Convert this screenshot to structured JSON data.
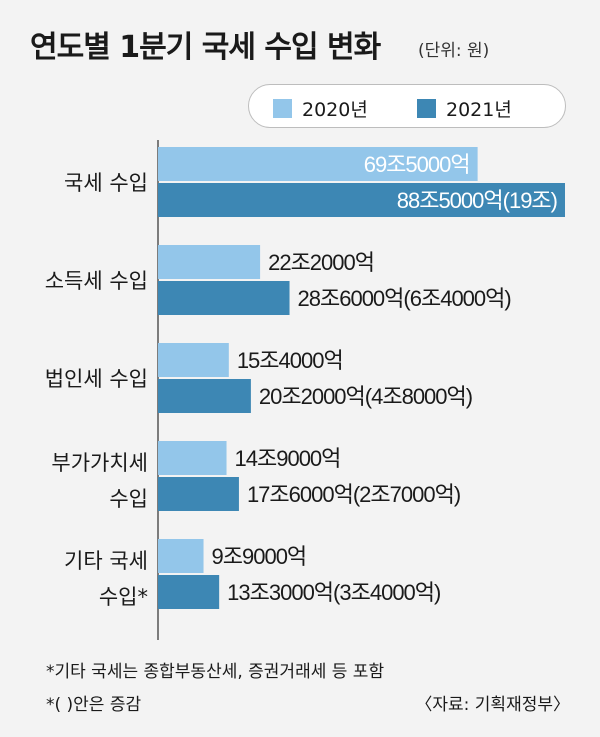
{
  "title": "연도별 1분기 국세 수입 변화",
  "unit": "(단위: 원)",
  "footnotes": [
    "*기타 국세는 종합부동산세, 증권거래세 등 포함",
    "*(  )안은 증감"
  ],
  "source": "〈자료: 기획재정부〉",
  "colors": {
    "2020": "#93c6ea",
    "2021": "#3d87b4",
    "background": "#f3f3f3"
  },
  "chart_data": {
    "type": "bar",
    "orientation": "horizontal",
    "unit": "억원",
    "categories": [
      [
        "국세 수입"
      ],
      [
        "소득세 수입"
      ],
      [
        "법인세 수입"
      ],
      [
        "부가가치세",
        "수입"
      ],
      [
        "기타 국세",
        "수입*"
      ]
    ],
    "series": [
      {
        "name": "2020년",
        "values": [
          695000,
          222000,
          154000,
          149000,
          99000
        ],
        "labels": [
          "69조5000억",
          "22조2000억",
          "15조4000억",
          "14조9000억",
          "9조9000억"
        ]
      },
      {
        "name": "2021년",
        "values": [
          885000,
          286000,
          202000,
          176000,
          133000
        ],
        "labels": [
          "88조5000억(19조)",
          "28조6000억(6조4000억)",
          "20조2000억(4조8000억)",
          "17조6000억(2조7000억)",
          "13조3000억(3조4000억)"
        ]
      }
    ],
    "legend_position": "top-right",
    "grid": false
  }
}
